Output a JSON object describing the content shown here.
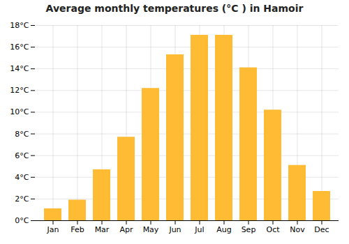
{
  "chart_data": {
    "type": "bar",
    "title": "Average monthly temperatures (°C ) in Hamoir",
    "categories": [
      "Jan",
      "Feb",
      "Mar",
      "Apr",
      "May",
      "Jun",
      "Jul",
      "Aug",
      "Sep",
      "Oct",
      "Nov",
      "Dec"
    ],
    "values": [
      1.1,
      1.9,
      4.7,
      7.7,
      12.2,
      15.3,
      17.1,
      17.1,
      14.1,
      10.2,
      5.1,
      2.7
    ],
    "color": "#FFBB33",
    "ylim": [
      0,
      18
    ],
    "yticks": [
      {
        "value": 0,
        "label": "0°C"
      },
      {
        "value": 2,
        "label": "2°C"
      },
      {
        "value": 4,
        "label": "4°C"
      },
      {
        "value": 6,
        "label": "6°C"
      },
      {
        "value": 8,
        "label": "8°C"
      },
      {
        "value": 10,
        "label": "10°C"
      },
      {
        "value": 12,
        "label": "12°C"
      },
      {
        "value": 14,
        "label": "14°C"
      },
      {
        "value": 16,
        "label": "16°C"
      },
      {
        "value": 18,
        "label": "18°C"
      }
    ],
    "grid": true
  }
}
